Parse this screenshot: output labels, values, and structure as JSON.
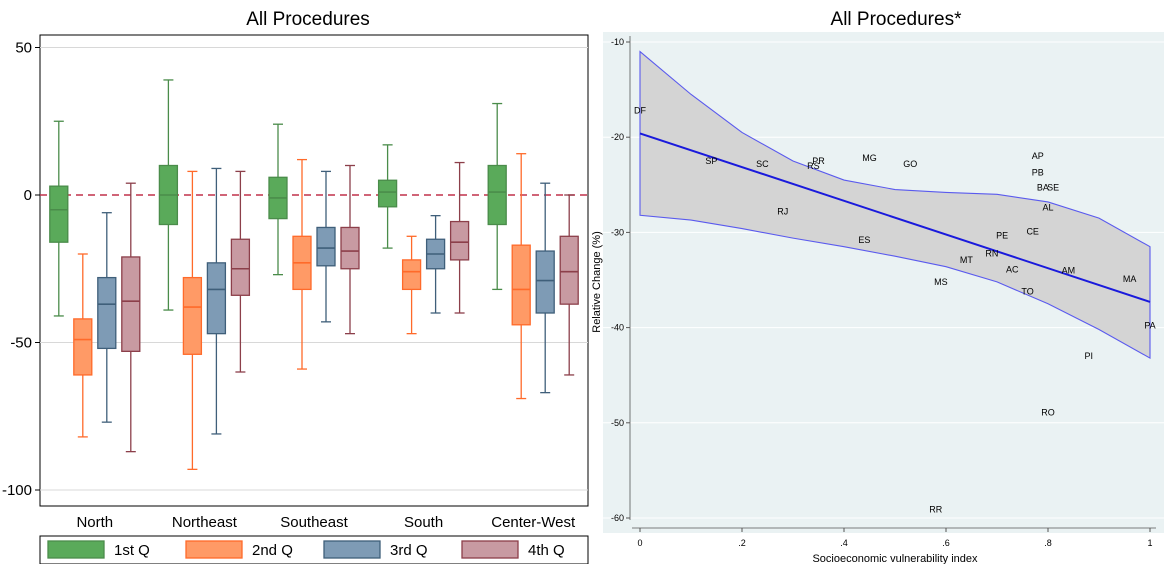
{
  "chart_data": [
    {
      "type": "box",
      "title": "All Procedures",
      "categories": [
        "North",
        "Northeast",
        "Southeast",
        "South",
        "Center-West"
      ],
      "ylim": [
        -105,
        55
      ],
      "yticks": [
        50,
        0,
        -50,
        -100
      ],
      "ytick_labels": [
        "50",
        "0",
        "-50",
        "-100"
      ],
      "reference_line": 0,
      "grid": true,
      "legend_position": "bottom",
      "series": [
        {
          "name": "1st Q",
          "color": "#4a8c4a",
          "fill": "#5aaa5a",
          "boxes": [
            {
              "min": -41,
              "q1": -16,
              "median": -5,
              "q3": 3,
              "max": 25
            },
            {
              "min": -39,
              "q1": -10,
              "median": 0,
              "q3": 10,
              "max": 39
            },
            {
              "min": -27,
              "q1": -8,
              "median": -1,
              "q3": 6,
              "max": 24
            },
            {
              "min": -18,
              "q1": -4,
              "median": 1,
              "q3": 5,
              "max": 17
            },
            {
              "min": -32,
              "q1": -10,
              "median": 1,
              "q3": 10,
              "max": 31
            }
          ]
        },
        {
          "name": "2nd Q",
          "color": "#ff6a2a",
          "fill": "#ff9a66",
          "boxes": [
            {
              "min": -82,
              "q1": -61,
              "median": -49,
              "q3": -42,
              "max": -20
            },
            {
              "min": -93,
              "q1": -54,
              "median": -38,
              "q3": -28,
              "max": 8
            },
            {
              "min": -59,
              "q1": -32,
              "median": -23,
              "q3": -14,
              "max": 12
            },
            {
              "min": -47,
              "q1": -32,
              "median": -26,
              "q3": -22,
              "max": -14
            },
            {
              "min": -69,
              "q1": -44,
              "median": -32,
              "q3": -17,
              "max": 14
            }
          ]
        },
        {
          "name": "3rd Q",
          "color": "#3f5f7a",
          "fill": "#7e9bb5",
          "boxes": [
            {
              "min": -77,
              "q1": -52,
              "median": -37,
              "q3": -28,
              "max": -6
            },
            {
              "min": -81,
              "q1": -47,
              "median": -32,
              "q3": -23,
              "max": 9
            },
            {
              "min": -43,
              "q1": -24,
              "median": -18,
              "q3": -11,
              "max": 8
            },
            {
              "min": -40,
              "q1": -25,
              "median": -20,
              "q3": -15,
              "max": -7
            },
            {
              "min": -67,
              "q1": -40,
              "median": -29,
              "q3": -19,
              "max": 4
            }
          ]
        },
        {
          "name": "4th Q",
          "color": "#8c3f4a",
          "fill": "#c89aa2",
          "boxes": [
            {
              "min": -87,
              "q1": -53,
              "median": -36,
              "q3": -21,
              "max": 4
            },
            {
              "min": -60,
              "q1": -34,
              "median": -25,
              "q3": -15,
              "max": 8
            },
            {
              "min": -47,
              "q1": -25,
              "median": -19,
              "q3": -11,
              "max": 10
            },
            {
              "min": -40,
              "q1": -22,
              "median": -16,
              "q3": -9,
              "max": 11
            },
            {
              "min": -61,
              "q1": -37,
              "median": -26,
              "q3": -14,
              "max": 0
            }
          ]
        }
      ]
    },
    {
      "type": "scatter",
      "title": "All Procedures*",
      "xlabel": "Socioeconomic vulnerability index",
      "ylabel": "Relative Change (%)",
      "xlim": [
        0,
        1
      ],
      "ylim": [
        -61,
        -9.5
      ],
      "xticks": [
        0,
        0.2,
        0.4,
        0.6,
        0.8,
        1
      ],
      "xtick_labels": [
        "0",
        ".2",
        ".4",
        ".6",
        ".8",
        "1"
      ],
      "yticks": [
        -10,
        -20,
        -30,
        -40,
        -50,
        -60
      ],
      "ytick_labels": [
        "-10",
        "-20",
        "-30",
        "-40",
        "-50",
        "-60"
      ],
      "grid": true,
      "background": "#eaf2f3",
      "points": [
        {
          "label": "DF",
          "x": 0.0,
          "y": -17.2
        },
        {
          "label": "SP",
          "x": 0.14,
          "y": -22.5
        },
        {
          "label": "SC",
          "x": 0.24,
          "y": -22.8
        },
        {
          "label": "PR",
          "x": 0.35,
          "y": -22.5
        },
        {
          "label": "RS",
          "x": 0.34,
          "y": -23.0
        },
        {
          "label": "MG",
          "x": 0.45,
          "y": -22.2
        },
        {
          "label": "GO",
          "x": 0.53,
          "y": -22.8
        },
        {
          "label": "RJ",
          "x": 0.28,
          "y": -27.8
        },
        {
          "label": "ES",
          "x": 0.44,
          "y": -30.8
        },
        {
          "label": "AP",
          "x": 0.78,
          "y": -22.0
        },
        {
          "label": "PB",
          "x": 0.78,
          "y": -23.7
        },
        {
          "label": "BA",
          "x": 0.79,
          "y": -25.3
        },
        {
          "label": "SE",
          "x": 0.81,
          "y": -25.3
        },
        {
          "label": "AL",
          "x": 0.8,
          "y": -27.4
        },
        {
          "label": "CE",
          "x": 0.77,
          "y": -29.9
        },
        {
          "label": "PE",
          "x": 0.71,
          "y": -30.3
        },
        {
          "label": "RN",
          "x": 0.69,
          "y": -32.2
        },
        {
          "label": "MT",
          "x": 0.64,
          "y": -32.9
        },
        {
          "label": "AC",
          "x": 0.73,
          "y": -33.9
        },
        {
          "label": "AM",
          "x": 0.84,
          "y": -34.0
        },
        {
          "label": "MA",
          "x": 0.96,
          "y": -34.9
        },
        {
          "label": "MS",
          "x": 0.59,
          "y": -35.2
        },
        {
          "label": "TO",
          "x": 0.76,
          "y": -36.2
        },
        {
          "label": "PA",
          "x": 1.0,
          "y": -39.8
        },
        {
          "label": "PI",
          "x": 0.88,
          "y": -43.0
        },
        {
          "label": "RO",
          "x": 0.8,
          "y": -48.9
        },
        {
          "label": "RR",
          "x": 0.58,
          "y": -59.1
        }
      ],
      "fit_line": {
        "x": [
          0,
          1
        ],
        "y": [
          -19.6,
          -37.3
        ],
        "color": "#1a1adc"
      },
      "ci_band": {
        "x": [
          0,
          0.1,
          0.2,
          0.3,
          0.4,
          0.5,
          0.6,
          0.7,
          0.8,
          0.9,
          1
        ],
        "upper": [
          -11.0,
          -15.5,
          -19.5,
          -22.5,
          -24.5,
          -25.5,
          -25.8,
          -26.0,
          -26.8,
          -28.5,
          -31.5
        ],
        "lower": [
          -28.2,
          -28.7,
          -29.6,
          -30.6,
          -31.5,
          -32.5,
          -33.6,
          -35.2,
          -37.5,
          -40.2,
          -43.2
        ]
      }
    }
  ]
}
